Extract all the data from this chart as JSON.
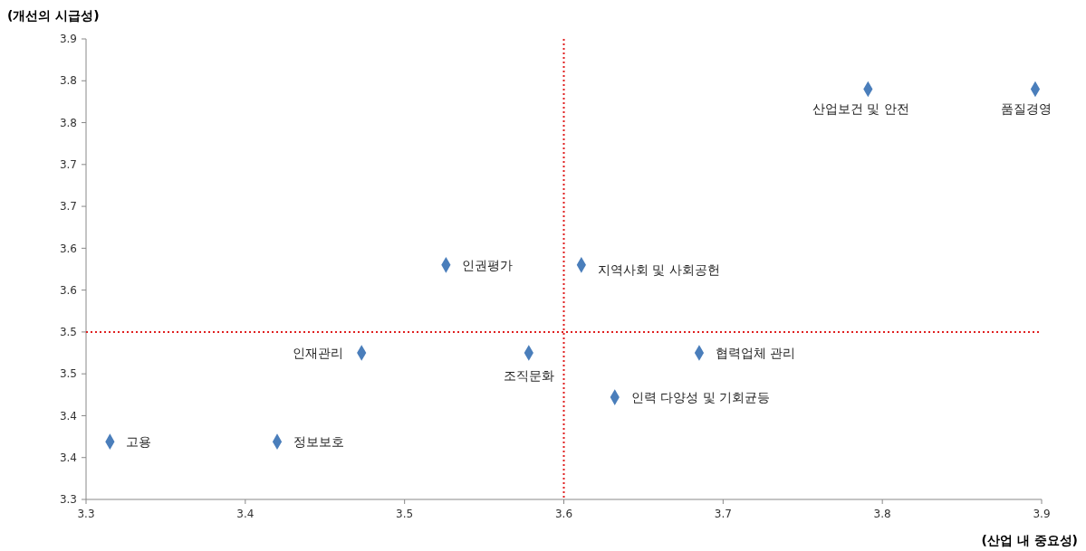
{
  "chart_data": {
    "type": "scatter",
    "xlabel": "(산업 내 중요성)",
    "ylabel": "(개선의 시급성)",
    "series": [
      {
        "color": "#4a7ebb",
        "x": [
          3.315,
          3.42,
          3.473,
          3.526,
          3.578,
          3.611,
          3.632,
          3.685,
          3.791,
          3.896
        ],
        "values": [
          3.369,
          3.369,
          3.475,
          3.58,
          3.475,
          3.58,
          3.422,
          3.475,
          3.79,
          3.79
        ]
      }
    ],
    "xlim": [
      3.3,
      3.9
    ],
    "xticks": [
      3.3,
      3.4,
      3.5,
      3.6,
      3.7,
      3.8,
      3.9
    ],
    "ylim": [
      3.3,
      3.85
    ],
    "yticks": [
      {
        "value": 3.3,
        "label": "3.3"
      },
      {
        "value": 3.35,
        "label": "3.4"
      },
      {
        "value": 3.4,
        "label": "3.4"
      },
      {
        "value": 3.45,
        "label": "3.5"
      },
      {
        "value": 3.5,
        "label": "3.5"
      },
      {
        "value": 3.55,
        "label": "3.6"
      },
      {
        "value": 3.6,
        "label": "3.6"
      },
      {
        "value": 3.65,
        "label": "3.7"
      },
      {
        "value": 3.7,
        "label": "3.7"
      },
      {
        "value": 3.75,
        "label": "3.8"
      },
      {
        "value": 3.8,
        "label": "3.8"
      },
      {
        "value": 3.85,
        "label": "3.9"
      }
    ],
    "marker": "diamond",
    "grid": false,
    "ref_lines": [
      {
        "axis": "x",
        "value": 3.6,
        "color": "#e02020",
        "line_style": "dotted"
      },
      {
        "axis": "y",
        "value": 3.5,
        "color": "#e02020",
        "line_style": "dotted"
      }
    ],
    "annotations": [
      {
        "text": "고용",
        "x": 3.315,
        "y": 3.369
      },
      {
        "text": "정보보호",
        "x": 3.42,
        "y": 3.369
      },
      {
        "text": "인재관리",
        "x": 3.473,
        "y": 3.475
      },
      {
        "text": "인권평가",
        "x": 3.526,
        "y": 3.58
      },
      {
        "text": "조직문화",
        "x": 3.578,
        "y": 3.475
      },
      {
        "text": "지역사회 및 사회공헌",
        "x": 3.611,
        "y": 3.58
      },
      {
        "text": "인력 다양성 및 기회균등",
        "x": 3.632,
        "y": 3.422
      },
      {
        "text": "협력업체 관리",
        "x": 3.685,
        "y": 3.475
      },
      {
        "text": "산업보건 및 안전",
        "x": 3.791,
        "y": 3.79
      },
      {
        "text": "품질경영",
        "x": 3.896,
        "y": 3.79
      }
    ]
  }
}
